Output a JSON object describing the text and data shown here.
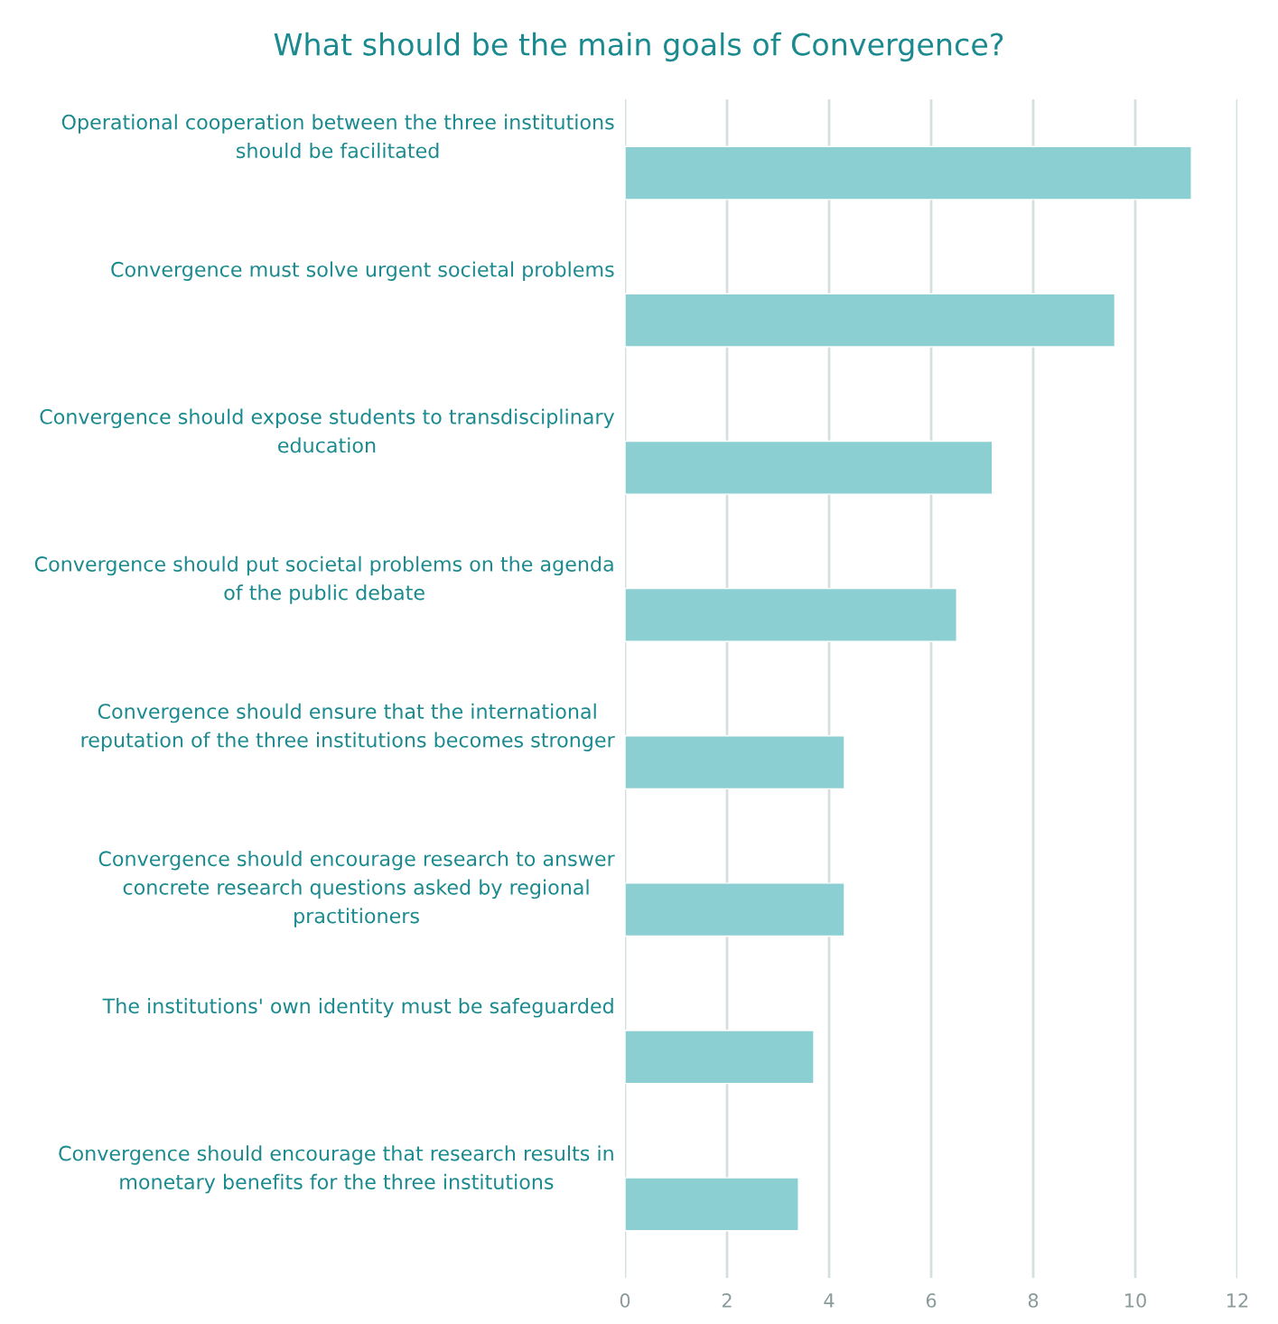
{
  "chart_data": {
    "type": "bar",
    "orientation": "horizontal",
    "title": "What should be the main goals of Convergence?",
    "categories": [
      "Operational cooperation between the three institutions\nshould be facilitated",
      "Convergence must solve urgent societal problems",
      "Convergence should expose students to transdisciplinary\neducation",
      "Convergence should put societal problems on the agenda\nof the public debate",
      "Convergence should ensure that the international\nreputation of the three institutions becomes stronger",
      "Convergence should encourage research to answer\nconcrete research questions asked by regional\npractitioners",
      "The institutions' own identity must be safeguarded",
      "Convergence should encourage that research results in\nmonetary benefits for the three institutions"
    ],
    "values": [
      11.1,
      9.6,
      7.2,
      6.5,
      4.3,
      4.3,
      3.7,
      3.4
    ],
    "color": "#8ccfd2",
    "xlim": [
      0,
      12
    ],
    "xticks": [
      0,
      2,
      4,
      6,
      8,
      10,
      12
    ],
    "grid": "x",
    "legend": false
  }
}
